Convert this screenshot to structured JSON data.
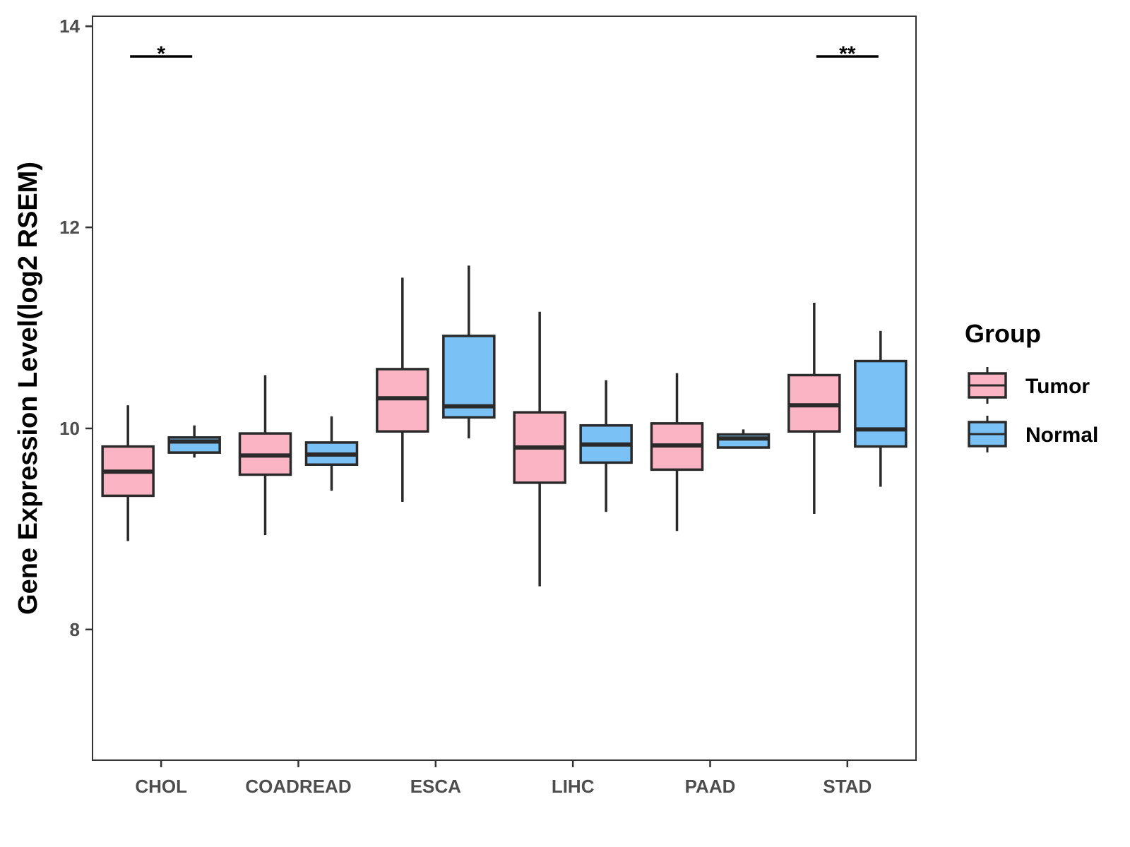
{
  "chart_data": {
    "type": "boxplot",
    "title": "",
    "xlabel": "",
    "ylabel": "Gene Expression Level(log2 RSEM)",
    "ylim": [
      6.7,
      14.1
    ],
    "yticks": [
      8,
      10,
      12,
      14
    ],
    "ytick_labels": [
      "8",
      "10",
      "12",
      "14"
    ],
    "grid": false,
    "categories": [
      "CHOL",
      "COADREAD",
      "ESCA",
      "LIHC",
      "PAAD",
      "STAD"
    ],
    "legend": {
      "title": "Group",
      "position": "right",
      "entries": [
        {
          "name": "Tumor",
          "color": "#fbb4c4"
        },
        {
          "name": "Normal",
          "color": "#7ac1f5"
        }
      ]
    },
    "series": [
      {
        "name": "Tumor",
        "color": "#fbb4c4",
        "boxes": [
          {
            "category": "CHOL",
            "whisker_low": 8.88,
            "q1": 9.33,
            "median": 9.57,
            "q3": 9.82,
            "whisker_high": 10.23
          },
          {
            "category": "COADREAD",
            "whisker_low": 8.94,
            "q1": 9.54,
            "median": 9.73,
            "q3": 9.95,
            "whisker_high": 10.53
          },
          {
            "category": "ESCA",
            "whisker_low": 9.27,
            "q1": 9.97,
            "median": 10.3,
            "q3": 10.59,
            "whisker_high": 11.5
          },
          {
            "category": "LIHC",
            "whisker_low": 8.43,
            "q1": 9.46,
            "median": 9.81,
            "q3": 10.16,
            "whisker_high": 11.16
          },
          {
            "category": "PAAD",
            "whisker_low": 8.98,
            "q1": 9.59,
            "median": 9.83,
            "q3": 10.05,
            "whisker_high": 10.55
          },
          {
            "category": "STAD",
            "whisker_low": 9.15,
            "q1": 9.97,
            "median": 10.23,
            "q3": 10.53,
            "whisker_high": 11.25
          }
        ]
      },
      {
        "name": "Normal",
        "color": "#7ac1f5",
        "boxes": [
          {
            "category": "CHOL",
            "whisker_low": 9.71,
            "q1": 9.76,
            "median": 9.87,
            "q3": 9.91,
            "whisker_high": 10.03
          },
          {
            "category": "COADREAD",
            "whisker_low": 9.38,
            "q1": 9.64,
            "median": 9.74,
            "q3": 9.86,
            "whisker_high": 10.12
          },
          {
            "category": "ESCA",
            "whisker_low": 9.9,
            "q1": 10.11,
            "median": 10.22,
            "q3": 10.92,
            "whisker_high": 11.62
          },
          {
            "category": "LIHC",
            "whisker_low": 9.17,
            "q1": 9.66,
            "median": 9.84,
            "q3": 10.03,
            "whisker_high": 10.48
          },
          {
            "category": "PAAD",
            "whisker_low": 9.8,
            "q1": 9.81,
            "median": 9.9,
            "q3": 9.94,
            "whisker_high": 9.99
          },
          {
            "category": "STAD",
            "whisker_low": 9.42,
            "q1": 9.82,
            "median": 9.99,
            "q3": 10.67,
            "whisker_high": 10.97
          }
        ]
      }
    ],
    "annotations": [
      {
        "category": "CHOL",
        "text": "*",
        "y": 13.7
      },
      {
        "category": "STAD",
        "text": "**",
        "y": 13.7
      }
    ]
  }
}
